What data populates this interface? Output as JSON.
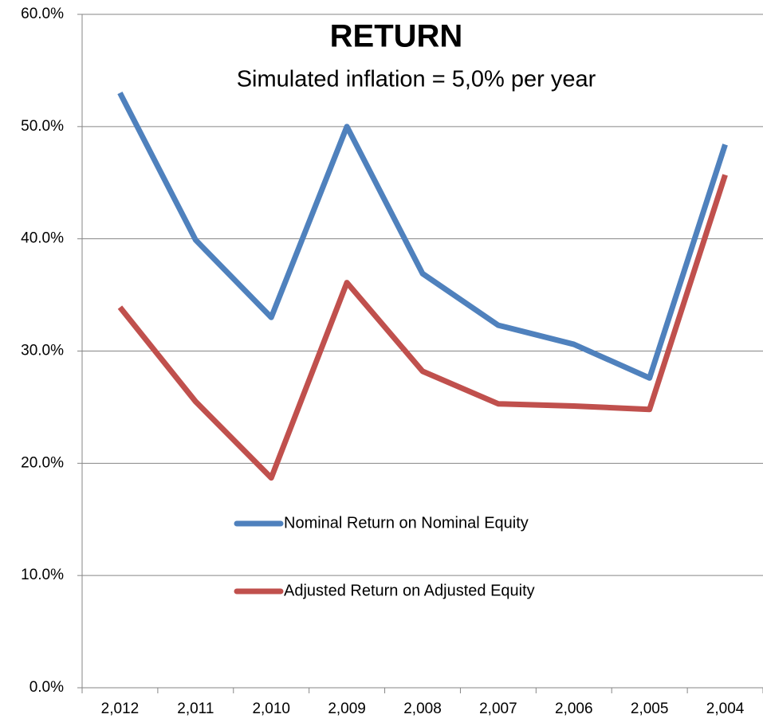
{
  "chart_data": {
    "type": "line",
    "title": "RETURN",
    "subtitle": "Simulated inflation = 5,0% per year",
    "categories": [
      "2,012",
      "2,011",
      "2,010",
      "2,009",
      "2,008",
      "2,007",
      "2,006",
      "2,005",
      "2,004"
    ],
    "series": [
      {
        "name": "Nominal Return on Nominal Equity",
        "color": "#4f81bd",
        "values": [
          53.0,
          39.9,
          33.0,
          50.0,
          36.9,
          32.3,
          30.6,
          27.6,
          48.4
        ]
      },
      {
        "name": "Adjusted Return on Adjusted Equity",
        "color": "#c0504d",
        "values": [
          33.9,
          25.5,
          18.7,
          36.1,
          28.2,
          25.3,
          25.1,
          24.8,
          45.7
        ]
      }
    ],
    "ylim": [
      0,
      60
    ],
    "yticks": [
      {
        "value": 0,
        "label": "0.0%"
      },
      {
        "value": 10,
        "label": "10.0%"
      },
      {
        "value": 20,
        "label": "20.0%"
      },
      {
        "value": 30,
        "label": "30.0%"
      },
      {
        "value": 40,
        "label": "40.0%"
      },
      {
        "value": 50,
        "label": "50.0%"
      },
      {
        "value": 60,
        "label": "60.0%"
      }
    ],
    "grid": true
  }
}
